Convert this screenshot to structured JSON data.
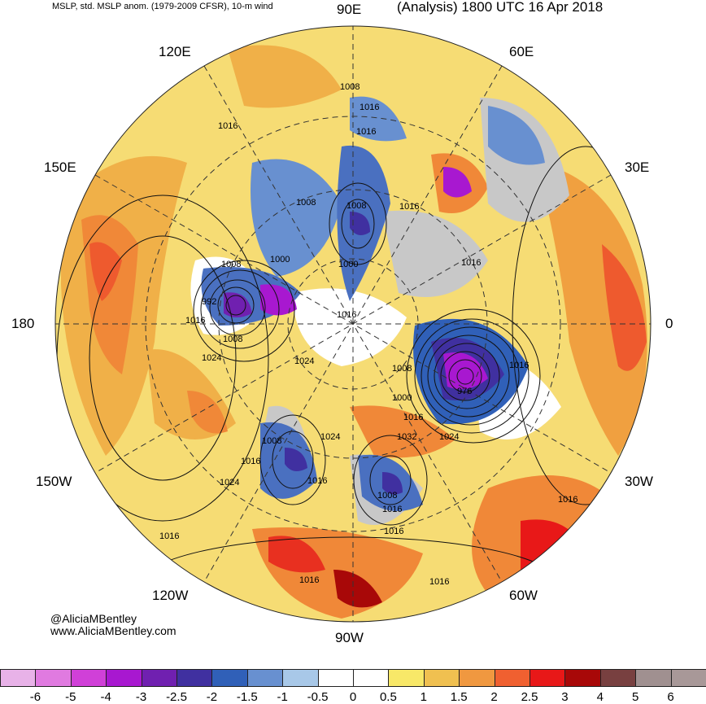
{
  "header": {
    "product": "MSLP, std. MSLP anom. (1979-2009 CFSR), 10-m wind",
    "valid": "(Analysis) 1800 UTC 16 Apr 2018"
  },
  "longitude_labels": {
    "e90": "90E",
    "e120": "120E",
    "e60": "60E",
    "e150": "150E",
    "e30": "30E",
    "d180": "180",
    "d0": "0",
    "w150": "150W",
    "w30": "30W",
    "w120": "120W",
    "w60": "60W",
    "w90": "90W"
  },
  "credit": {
    "handle": "@AliciaMBentley",
    "site": "www.AliciaMBentley.com"
  },
  "isobar_labels": [
    "1008",
    "1016",
    "1016",
    "1016",
    "1008",
    "1016",
    "1008",
    "1008",
    "1000",
    "1000",
    "1016",
    "1016",
    "992",
    "1016",
    "1008",
    "1016",
    "1024",
    "1008",
    "1000",
    "976",
    "1016",
    "1024",
    "1016",
    "1032",
    "1024",
    "1008",
    "1016",
    "1016",
    "1024",
    "1008",
    "1016",
    "1024",
    "1016",
    "1016",
    "1016",
    "1016"
  ],
  "colorbar": {
    "ticks": [
      "-6",
      "-5",
      "-4",
      "-3",
      "-2.5",
      "-2",
      "-1.5",
      "-1",
      "-0.5",
      "0",
      "0.5",
      "1",
      "1.5",
      "2",
      "2.5",
      "3",
      "4",
      "5",
      "6"
    ],
    "colors": [
      "#e8b2e8",
      "#e07ae0",
      "#d040d8",
      "#a818d0",
      "#7020b0",
      "#4030a0",
      "#3060b8",
      "#6890d0",
      "#a8c8e8",
      "#ffffff",
      "#ffffff",
      "#f8e868",
      "#f0c050",
      "#f09840",
      "#f06030",
      "#e81818",
      "#a80808",
      "#784040",
      "#a09090",
      "#a89898"
    ]
  }
}
